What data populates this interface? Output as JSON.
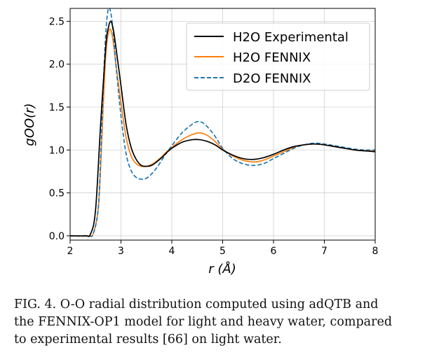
{
  "chart_data": {
    "type": "line",
    "xlabel": "r (Å)",
    "ylabel": "gOO(r)",
    "xlim": [
      2,
      8
    ],
    "ylim": [
      -0.05,
      2.65
    ],
    "xticks": [
      "2",
      "3",
      "4",
      "5",
      "6",
      "7",
      "8"
    ],
    "yticks": [
      "0.0",
      "0.5",
      "1.0",
      "1.5",
      "2.0",
      "2.5"
    ],
    "grid": true,
    "legend_position": "top-right",
    "series": [
      {
        "name": "H2O Experimental",
        "color": "#000000",
        "dash": "solid",
        "x": [
          2.0,
          2.3,
          2.4,
          2.5,
          2.6,
          2.7,
          2.75,
          2.8,
          2.85,
          2.9,
          3.0,
          3.1,
          3.2,
          3.3,
          3.4,
          3.5,
          3.6,
          3.7,
          3.8,
          3.9,
          4.0,
          4.2,
          4.4,
          4.55,
          4.7,
          4.85,
          5.0,
          5.2,
          5.4,
          5.6,
          5.8,
          6.0,
          6.2,
          6.4,
          6.6,
          6.8,
          7.0,
          7.2,
          7.4,
          7.6,
          7.8,
          8.0
        ],
        "y": [
          0.0,
          0.0,
          0.02,
          0.3,
          1.3,
          2.2,
          2.42,
          2.5,
          2.4,
          2.2,
          1.75,
          1.3,
          1.03,
          0.89,
          0.82,
          0.81,
          0.82,
          0.86,
          0.91,
          0.97,
          1.02,
          1.09,
          1.12,
          1.12,
          1.1,
          1.06,
          1.0,
          0.94,
          0.9,
          0.89,
          0.91,
          0.95,
          1.0,
          1.04,
          1.06,
          1.07,
          1.06,
          1.04,
          1.02,
          1.0,
          0.99,
          0.98
        ]
      },
      {
        "name": "H2O FENNIX",
        "color": "#ff7f0e",
        "dash": "solid",
        "x": [
          2.0,
          2.35,
          2.45,
          2.55,
          2.6,
          2.65,
          2.7,
          2.75,
          2.8,
          2.85,
          2.9,
          3.0,
          3.1,
          3.2,
          3.3,
          3.4,
          3.5,
          3.6,
          3.7,
          3.8,
          3.9,
          4.0,
          4.2,
          4.4,
          4.55,
          4.7,
          4.85,
          5.0,
          5.2,
          5.4,
          5.6,
          5.8,
          6.0,
          6.2,
          6.4,
          6.6,
          6.8,
          7.0,
          7.2,
          7.4,
          7.6,
          7.8,
          8.0
        ],
        "y": [
          0.0,
          0.0,
          0.02,
          0.3,
          0.8,
          1.5,
          2.1,
          2.36,
          2.4,
          2.25,
          2.0,
          1.55,
          1.15,
          0.93,
          0.84,
          0.81,
          0.81,
          0.83,
          0.87,
          0.92,
          0.98,
          1.03,
          1.12,
          1.18,
          1.2,
          1.17,
          1.1,
          1.01,
          0.93,
          0.88,
          0.86,
          0.88,
          0.93,
          0.98,
          1.03,
          1.06,
          1.07,
          1.06,
          1.04,
          1.02,
          1.0,
          0.99,
          0.99
        ]
      },
      {
        "name": "D2O FENNIX",
        "color": "#1f77b4",
        "dash": "dashed",
        "x": [
          2.0,
          2.35,
          2.45,
          2.55,
          2.6,
          2.65,
          2.7,
          2.75,
          2.8,
          2.85,
          2.9,
          3.0,
          3.1,
          3.2,
          3.3,
          3.4,
          3.5,
          3.6,
          3.7,
          3.8,
          3.9,
          4.0,
          4.2,
          4.4,
          4.5,
          4.6,
          4.7,
          4.85,
          5.0,
          5.2,
          5.4,
          5.6,
          5.8,
          6.0,
          6.2,
          6.4,
          6.6,
          6.8,
          7.0,
          7.2,
          7.4,
          7.6,
          7.8,
          8.0
        ],
        "y": [
          0.0,
          0.0,
          0.02,
          0.3,
          0.9,
          1.7,
          2.35,
          2.64,
          2.6,
          2.35,
          2.0,
          1.4,
          0.96,
          0.76,
          0.68,
          0.66,
          0.67,
          0.72,
          0.79,
          0.88,
          0.97,
          1.05,
          1.2,
          1.3,
          1.33,
          1.32,
          1.27,
          1.16,
          1.02,
          0.9,
          0.84,
          0.82,
          0.84,
          0.9,
          0.96,
          1.02,
          1.06,
          1.08,
          1.07,
          1.05,
          1.03,
          1.01,
          1.0,
          1.0
        ]
      }
    ]
  },
  "caption": {
    "line1": "FIG. 4. O-O radial distribution computed using adQTB and",
    "line2": "the FENNIX-OP1 model for light and heavy water, compared",
    "line3": "to experimental results [66] on light water."
  }
}
